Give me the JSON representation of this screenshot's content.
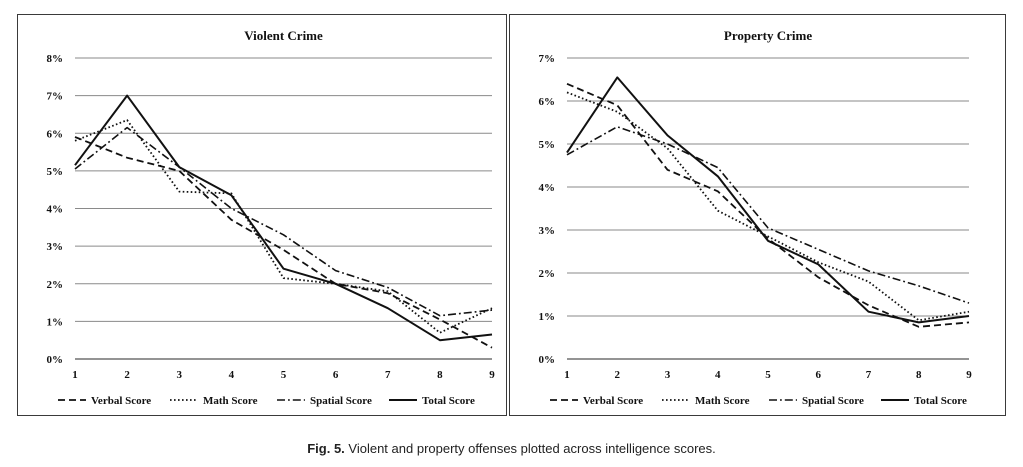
{
  "chart_data": [
    {
      "type": "line",
      "title": "Violent Crime",
      "xlabel": "",
      "ylabel": "",
      "x": [
        1,
        2,
        3,
        4,
        5,
        6,
        7,
        8,
        9
      ],
      "x_tick_labels": [
        "1",
        "2",
        "3",
        "4",
        "5",
        "6",
        "7",
        "8",
        "9"
      ],
      "y_tick_labels": [
        "0%",
        "1%",
        "2%",
        "3%",
        "4%",
        "5%",
        "6%",
        "7%",
        "8%"
      ],
      "ylim": [
        0,
        8
      ],
      "y_unit": "%",
      "grid": "horizontal",
      "legend_position": "bottom",
      "series": [
        {
          "name": "Verbal Score",
          "style": "dashed",
          "values": [
            5.9,
            5.35,
            5.0,
            3.7,
            2.9,
            2.0,
            1.75,
            1.05,
            0.3
          ]
        },
        {
          "name": "Math Score",
          "style": "dotted",
          "values": [
            5.8,
            6.35,
            4.45,
            4.4,
            2.15,
            2.0,
            1.8,
            0.7,
            1.35
          ]
        },
        {
          "name": "Spatial Score",
          "style": "dashdot",
          "values": [
            5.05,
            6.15,
            5.1,
            4.0,
            3.3,
            2.35,
            1.9,
            1.15,
            1.3
          ]
        },
        {
          "name": "Total Score",
          "style": "solid",
          "values": [
            5.15,
            7.0,
            5.1,
            4.35,
            2.4,
            2.0,
            1.35,
            0.5,
            0.65
          ]
        }
      ]
    },
    {
      "type": "line",
      "title": "Property Crime",
      "xlabel": "",
      "ylabel": "",
      "x": [
        1,
        2,
        3,
        4,
        5,
        6,
        7,
        8,
        9
      ],
      "x_tick_labels": [
        "1",
        "2",
        "3",
        "4",
        "5",
        "6",
        "7",
        "8",
        "9"
      ],
      "y_tick_labels": [
        "0%",
        "1%",
        "2%",
        "3%",
        "4%",
        "5%",
        "6%",
        "7%"
      ],
      "ylim": [
        0,
        7
      ],
      "y_unit": "%",
      "grid": "horizontal",
      "legend_position": "bottom",
      "series": [
        {
          "name": "Verbal Score",
          "style": "dashed",
          "values": [
            6.4,
            5.9,
            4.4,
            3.9,
            2.8,
            1.9,
            1.25,
            0.75,
            0.85
          ]
        },
        {
          "name": "Math Score",
          "style": "dotted",
          "values": [
            6.2,
            5.75,
            4.9,
            3.45,
            2.85,
            2.25,
            1.8,
            0.9,
            1.1
          ]
        },
        {
          "name": "Spatial Score",
          "style": "dashdot",
          "values": [
            4.75,
            5.4,
            5.0,
            4.45,
            3.05,
            2.55,
            2.05,
            1.7,
            1.3
          ]
        },
        {
          "name": "Total Score",
          "style": "solid",
          "values": [
            4.8,
            6.55,
            5.2,
            4.25,
            2.75,
            2.2,
            1.1,
            0.85,
            1.0
          ]
        }
      ]
    }
  ],
  "caption": {
    "label": "Fig. 5.",
    "text": " Violent and property offenses plotted across intelligence scores."
  }
}
